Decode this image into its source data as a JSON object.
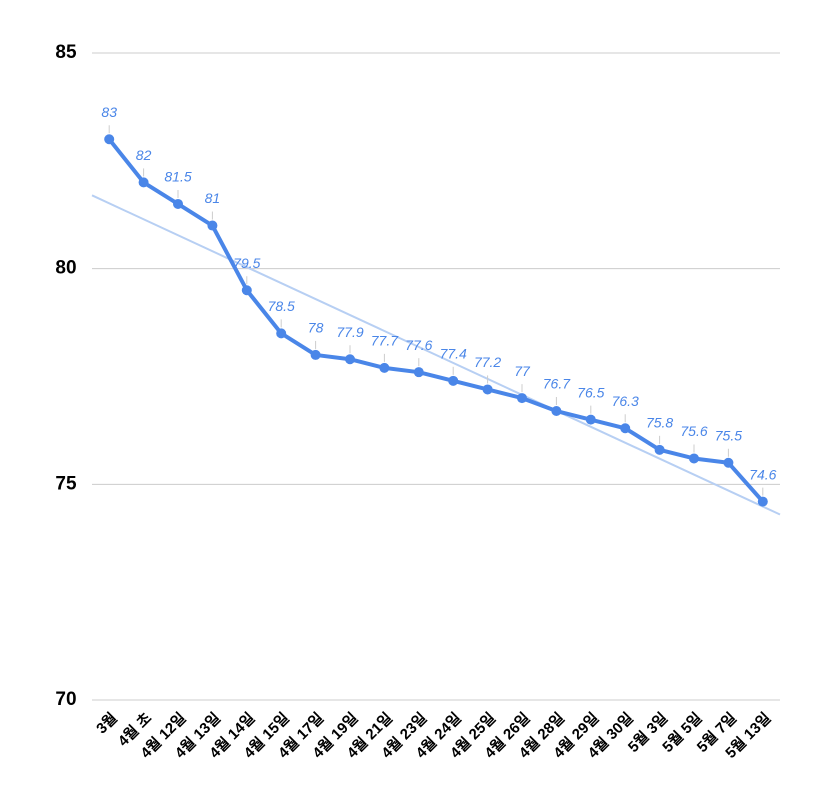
{
  "chart_data": {
    "type": "line",
    "categories": [
      "3월",
      "4월 초",
      "4월 12일",
      "4월 13일",
      "4월 14일",
      "4월 15일",
      "4월 17일",
      "4월 19일",
      "4월 21일",
      "4월 23일",
      "4월 24일",
      "4월 25일",
      "4월 26일",
      "4월 28일",
      "4월 29일",
      "4월 30일",
      "5월 3일",
      "5월 5일",
      "5월 7일",
      "5월 13일"
    ],
    "values": [
      83,
      82,
      81.5,
      81,
      79.5,
      78.5,
      78,
      77.9,
      77.7,
      77.6,
      77.4,
      77.2,
      77,
      76.7,
      76.5,
      76.3,
      75.8,
      75.6,
      75.5,
      74.6
    ],
    "color": "#4a86e8",
    "trendline": {
      "color": "#b7cff3",
      "values": [
        81.7,
        74.3
      ]
    },
    "ylim": [
      70,
      85
    ],
    "yticks": [
      70,
      75,
      80,
      85
    ],
    "grid": true
  }
}
